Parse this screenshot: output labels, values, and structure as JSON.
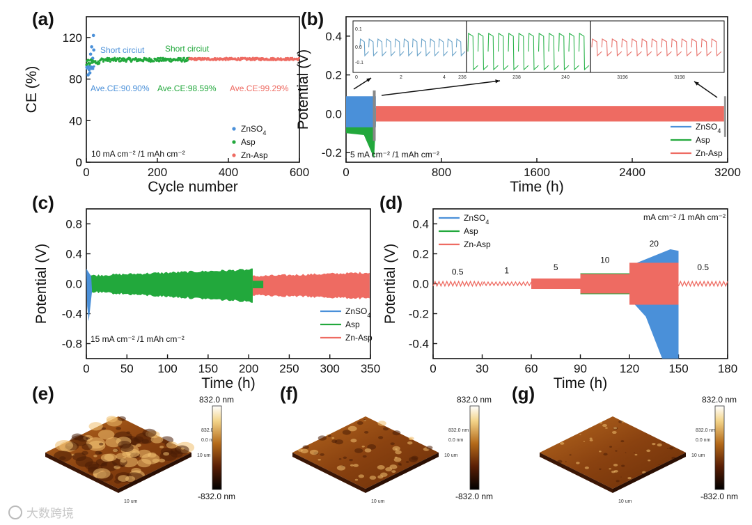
{
  "colors": {
    "znso4": "#4a90d9",
    "asp": "#22a83c",
    "znasp": "#ee6b62",
    "axis": "#111111",
    "inset_znso4": "#6aa3c9",
    "inset_asp": "#29b34a",
    "inset_znasp": "#e8716b"
  },
  "watermark": {
    "logo_text": "大数跨境"
  },
  "chart_data": [
    {
      "id": "a",
      "panel_label": "(a)",
      "type": "scatter",
      "xlabel": "Cycle number",
      "ylabel": "CE (%)",
      "xlim": [
        0,
        600
      ],
      "ylim": [
        0,
        140
      ],
      "xticks": [
        0,
        200,
        400,
        600
      ],
      "yticks": [
        0,
        40,
        80,
        120
      ],
      "series": [
        {
          "name": "ZnSO4",
          "legend_main": "ZnSO",
          "legend_sub": "4",
          "color_key": "znso4",
          "x_range": [
            0,
            22
          ],
          "mean": 90.9,
          "scatter_extra": [
            [
              5,
              84
            ],
            [
              8,
              89
            ],
            [
              10,
              86
            ],
            [
              12,
              104
            ],
            [
              15,
              111
            ],
            [
              18,
              100
            ],
            [
              20,
              122
            ],
            [
              21,
              108
            ]
          ]
        },
        {
          "name": "Asp",
          "legend_main": "Asp",
          "color_key": "asp",
          "x_range": [
            0,
            290
          ],
          "mean": 98.59
        },
        {
          "name": "Zn-Asp",
          "legend_main": "Zn-Asp",
          "color_key": "znasp",
          "x_range": [
            290,
            600
          ],
          "mean": 99.29
        }
      ],
      "annotations": {
        "short_circuit_1": "Short circiut",
        "short_circuit_2": "Short circiut",
        "ave_znso4": "Ave.CE:90.90%",
        "ave_asp": "Ave.CE:98.59%",
        "ave_znasp": "Ave.CE:99.29%",
        "condition": "10 mA cm⁻² /1 mAh cm⁻²"
      }
    },
    {
      "id": "b",
      "panel_label": "(b)",
      "type": "line",
      "xlabel": "Time (h)",
      "ylabel": "Potential (V)",
      "xlim": [
        0,
        3200
      ],
      "ylim": [
        -0.25,
        0.5
      ],
      "xticks": [
        0,
        800,
        1600,
        2400,
        3200
      ],
      "yticks": [
        -0.2,
        0.0,
        0.2,
        0.4
      ],
      "series": [
        {
          "name": "ZnSO4",
          "legend_main": "ZnSO",
          "legend_sub": "4",
          "color_key": "znso4",
          "t_end": 250,
          "amp_start": 0.09,
          "amp_end": 0.1
        },
        {
          "name": "Asp",
          "legend_main": "Asp",
          "color_key": "asp",
          "t_end": 250,
          "amp_start": 0.06,
          "amp_end": -0.23
        },
        {
          "name": "Zn-Asp",
          "legend_main": "Zn-Asp",
          "color_key": "znasp",
          "t_end": 3200,
          "amp_start": 0.04,
          "amp_end": 0.04
        }
      ],
      "inset": {
        "segment1_ticks": [
          "0",
          "2",
          "4",
          "236"
        ],
        "segment2_ticks": [
          "238",
          "240"
        ],
        "segment3_ticks": [
          "3196",
          "3198"
        ],
        "yticks": [
          "0.1",
          "0.0",
          "-0.1"
        ]
      },
      "annotations": {
        "condition": "5 mA cm⁻² /1 mAh cm⁻²"
      }
    },
    {
      "id": "c",
      "panel_label": "(c)",
      "type": "line",
      "xlabel": "Time (h)",
      "ylabel": "Potential (V)",
      "xlim": [
        0,
        350
      ],
      "ylim": [
        -1.0,
        1.0
      ],
      "xticks": [
        0,
        50,
        100,
        150,
        200,
        250,
        300,
        350
      ],
      "yticks": [
        -0.8,
        -0.4,
        0.0,
        0.4,
        0.8
      ],
      "series": [
        {
          "name": "ZnSO4",
          "legend_main": "ZnSO",
          "legend_sub": "4",
          "color_key": "znso4",
          "t_end": 8,
          "amp": 0.2
        },
        {
          "name": "Asp",
          "legend_main": "Asp",
          "color_key": "asp",
          "t_end": 218,
          "amp_start": 0.11,
          "amp_end": 0.19
        },
        {
          "name": "Zn-Asp",
          "legend_main": "Zn-Asp",
          "color_key": "znasp",
          "t_start": 205,
          "t_end": 350,
          "amp_start": 0.1,
          "amp_end": 0.15
        }
      ],
      "annotations": {
        "condition": "15 mA cm⁻² /1 mAh cm⁻²"
      }
    },
    {
      "id": "d",
      "panel_label": "(d)",
      "type": "line",
      "xlabel": "Time (h)",
      "ylabel": "Potential (V)",
      "xlim": [
        0,
        180
      ],
      "ylim": [
        -0.5,
        0.5
      ],
      "xticks": [
        0,
        30,
        60,
        90,
        120,
        150,
        180
      ],
      "yticks": [
        -0.4,
        -0.2,
        0.0,
        0.2,
        0.4
      ],
      "rate_segments": [
        {
          "label": "0.5",
          "t0": 0,
          "t1": 30,
          "amp": 0.015,
          "label_y": 0.06
        },
        {
          "label": "1",
          "t0": 30,
          "t1": 60,
          "amp": 0.012,
          "label_y": 0.07
        },
        {
          "label": "5",
          "t0": 60,
          "t1": 90,
          "amp": 0.035,
          "label_y": 0.09
        },
        {
          "label": "10",
          "t0": 90,
          "t1": 120,
          "amp": 0.065,
          "label_y": 0.14
        },
        {
          "label": "20",
          "t0": 120,
          "t1": 150,
          "amp": 0.14,
          "label_y": 0.25
        },
        {
          "label": "0.5",
          "t0": 150,
          "t1": 180,
          "amp": 0.015,
          "label_y": 0.09
        }
      ],
      "series": [
        {
          "name": "ZnSO4",
          "legend_main": "ZnSO",
          "legend_sub": "4",
          "color_key": "znso4"
        },
        {
          "name": "Asp",
          "legend_main": "Asp",
          "color_key": "asp"
        },
        {
          "name": "Zn-Asp",
          "legend_main": "Zn-Asp",
          "color_key": "znasp"
        }
      ],
      "annotations": {
        "condition": "mA cm⁻² /1 mAh cm⁻²"
      }
    }
  ],
  "afm": [
    {
      "id": "e",
      "panel_label": "(e)",
      "colorbar_top": "832.0 nm",
      "colorbar_bottom": "-832.0 nm",
      "axis_labels": [
        "832.0 nm",
        "0.0 nm",
        "10 um",
        "10 um"
      ],
      "roughness": 1.0
    },
    {
      "id": "f",
      "panel_label": "(f)",
      "colorbar_top": "832.0 nm",
      "colorbar_bottom": "-832.0 nm",
      "axis_labels": [
        "832.0 nm",
        "0.0 nm",
        "10 um",
        "10 um"
      ],
      "roughness": 0.35
    },
    {
      "id": "g",
      "panel_label": "(g)",
      "colorbar_top": "832.0 nm",
      "colorbar_bottom": "-832.0 nm",
      "axis_labels": [
        "832.0 nm",
        "0.0 nm",
        "10 um",
        "10 um"
      ],
      "roughness": 0.08
    }
  ]
}
